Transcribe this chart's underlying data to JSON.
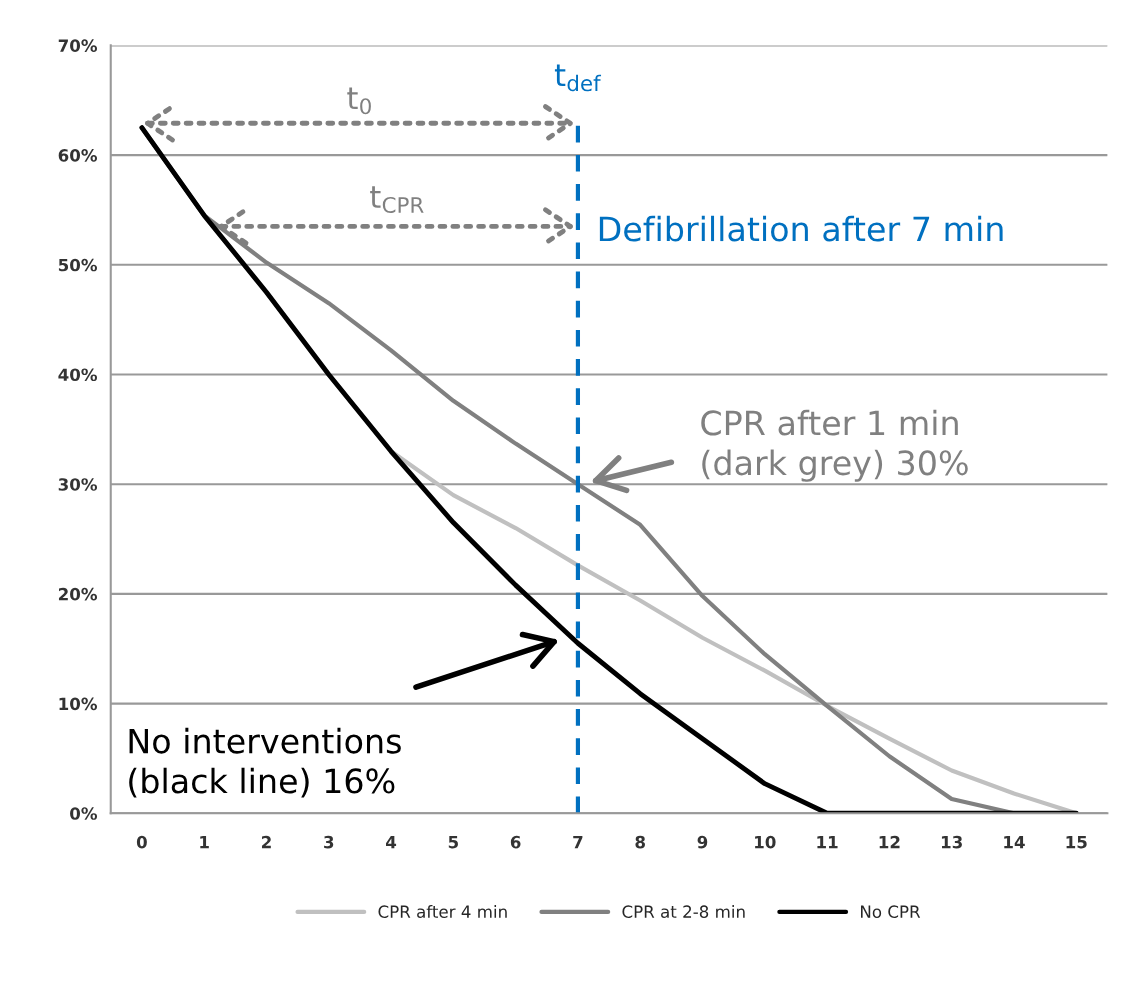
{
  "chart_data": {
    "type": "line",
    "x": [
      0,
      1,
      2,
      3,
      4,
      5,
      6,
      7,
      8,
      9,
      10,
      11,
      12,
      13,
      14,
      15
    ],
    "series": [
      {
        "name": "CPR after 4 min",
        "color": "#c0c0c0",
        "values": [
          62.5,
          54.5,
          47.5,
          40,
          33,
          29,
          26,
          22.6,
          19.4,
          16,
          13,
          9.8,
          6.8,
          3.9,
          1.8,
          0
        ]
      },
      {
        "name": "CPR at 2-8 min",
        "color": "#808080",
        "values": [
          62.5,
          54.5,
          50.2,
          46.5,
          42.2,
          37.6,
          33.7,
          30,
          26.3,
          19.8,
          14.5,
          9.8,
          5.2,
          1.3,
          0,
          0
        ]
      },
      {
        "name": "No CPR",
        "color": "#000000",
        "values": [
          62.5,
          54.5,
          47.5,
          40,
          33,
          26.5,
          20.8,
          15.5,
          10.9,
          6.8,
          2.7,
          0,
          0,
          0,
          0,
          0
        ]
      }
    ],
    "xlim": [
      -0.5,
      15.5
    ],
    "xticks": [
      0,
      1,
      2,
      3,
      4,
      5,
      6,
      7,
      8,
      9,
      10,
      11,
      12,
      13,
      14,
      15
    ],
    "ylim": [
      0,
      70
    ],
    "yticks": [
      {
        "value": 0,
        "label": "0%"
      },
      {
        "value": 10,
        "label": "10%"
      },
      {
        "value": 20,
        "label": "20%"
      },
      {
        "value": 30,
        "label": "30%"
      },
      {
        "value": 40,
        "label": "40%"
      },
      {
        "value": 50,
        "label": "50%"
      },
      {
        "value": 60,
        "label": "60%"
      },
      {
        "value": 70,
        "label": "70%"
      }
    ],
    "grid": "y",
    "legend": "bottom",
    "marker": "none",
    "line_style": "solid",
    "ref_lines": [
      {
        "axis": "x",
        "value": 7,
        "label": "t$_{def}$",
        "color": "#0070c0",
        "line_style": "dashed"
      }
    ],
    "annotations": [
      "t$_{0}$",
      "t$_{CPR}$",
      {
        "text": "Defibrillation after 7 min",
        "x": 7,
        "y": 53
      },
      "CPR after 1 min\n(dark grey) 30%",
      "No interventions\n(black line) 16%"
    ]
  }
}
